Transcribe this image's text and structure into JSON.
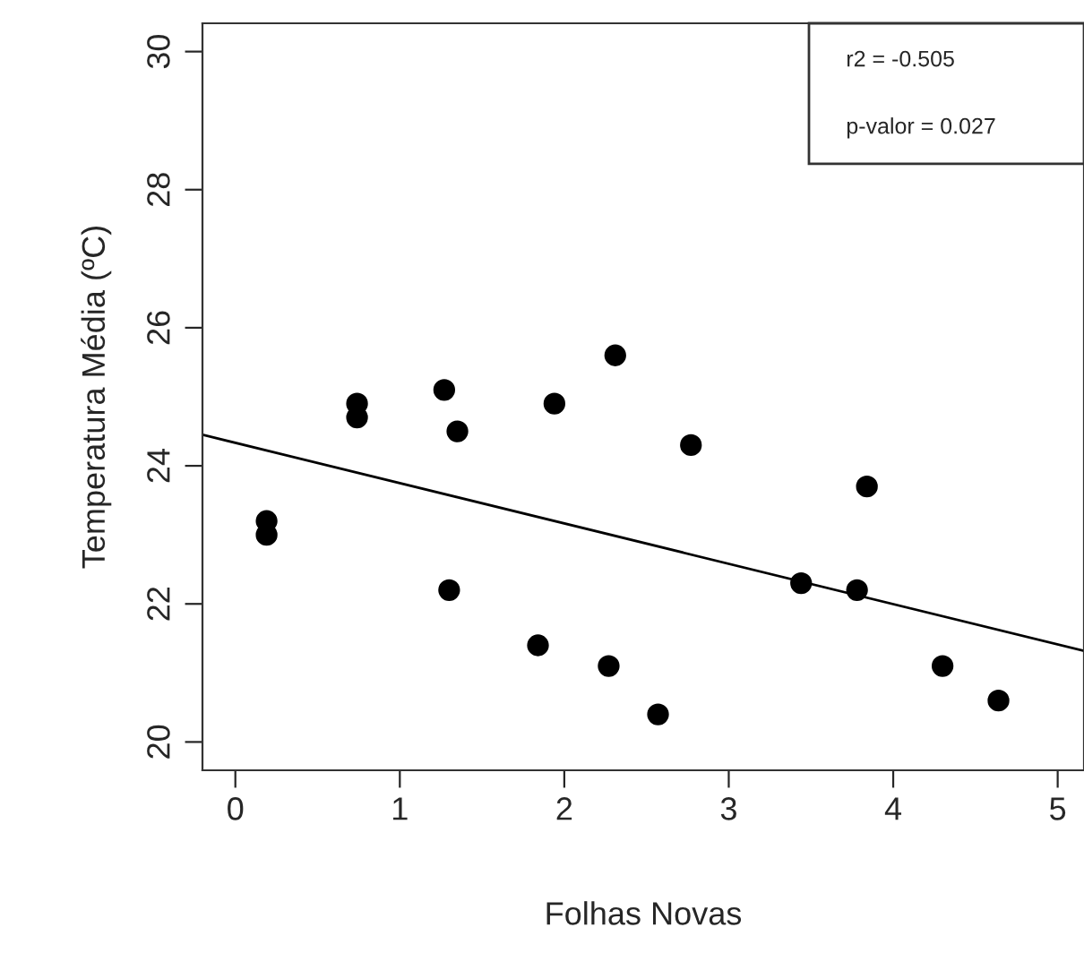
{
  "chart_data": {
    "type": "scatter",
    "xlabel": "Folhas Novas",
    "ylabel": "Temperatura Média (ºC)",
    "x": [
      0.19,
      0.19,
      0.74,
      0.74,
      1.27,
      1.35,
      1.3,
      1.94,
      2.31,
      1.84,
      2.27,
      2.57,
      2.77,
      3.44,
      3.78,
      3.84,
      4.3,
      4.64
    ],
    "series": [
      {
        "color": "#000000",
        "marker": "circle",
        "values": [
          23.2,
          23.0,
          24.9,
          24.7,
          25.1,
          24.5,
          22.2,
          24.9,
          25.6,
          21.4,
          21.1,
          20.4,
          24.3,
          22.3,
          22.2,
          23.7,
          21.1,
          20.6
        ]
      },
      {
        "type": "line",
        "color": "#000000",
        "x": [
          -0.2,
          5.16
        ],
        "values": [
          24.45,
          21.32
        ]
      }
    ],
    "annotations": [
      "r2 = -0.505",
      "p-valor = 0.027"
    ],
    "xlim": [
      -0.2,
      5.16
    ],
    "ylim": [
      19.59,
      30.41
    ],
    "xticks": [
      0,
      1,
      2,
      3,
      4,
      5
    ],
    "yticks": [
      20,
      22,
      24,
      26,
      28,
      30
    ],
    "line_style": "solid",
    "grid": false,
    "legend": false
  }
}
